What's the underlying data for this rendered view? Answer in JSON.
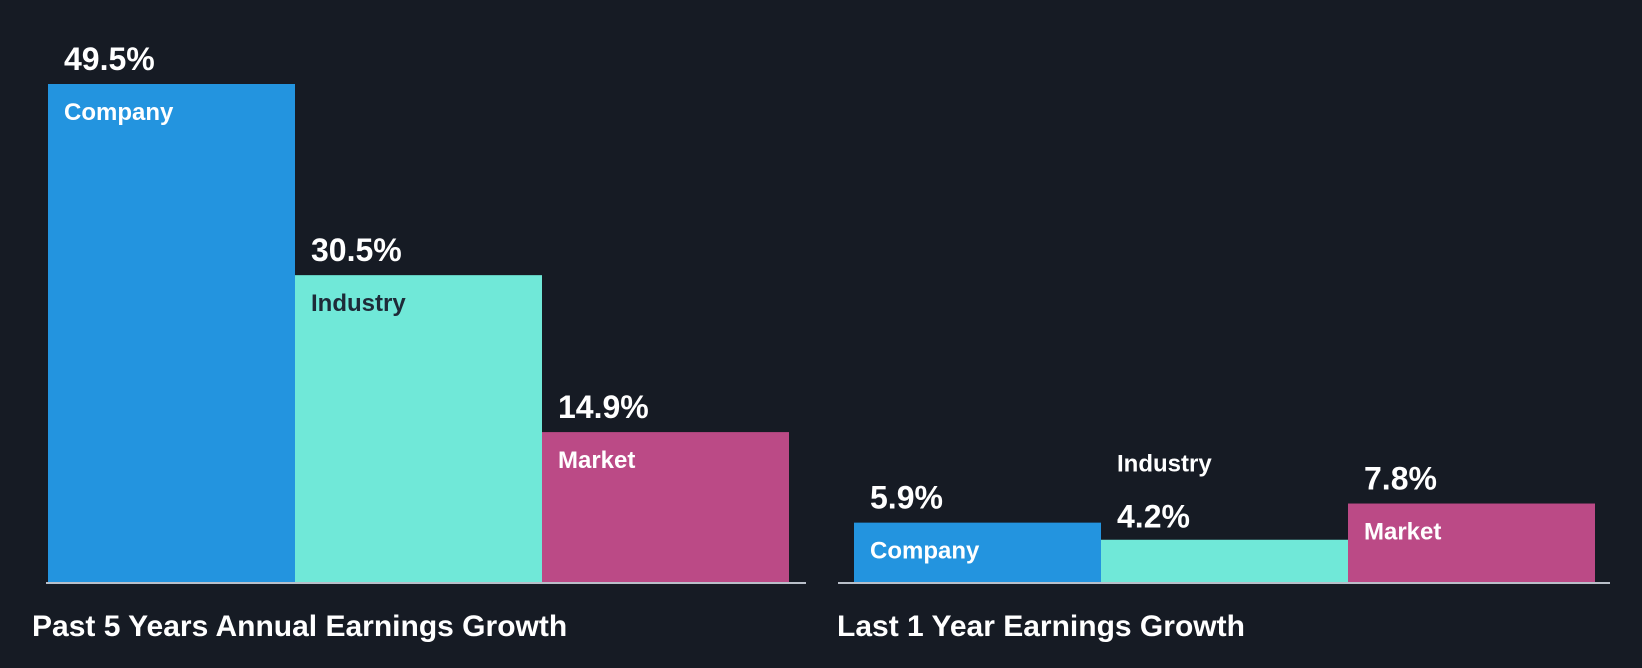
{
  "colors": {
    "background": "#161b24",
    "company": "#2394df",
    "industry": "#70e8d8",
    "market": "#bb4a86",
    "baseline": "#b9bfc9",
    "text_light": "#ffffff",
    "text_dark": "#1e2a38"
  },
  "chart_data": [
    {
      "type": "bar",
      "title": "Past 5 Years Annual Earnings Growth",
      "categories": [
        "Company",
        "Industry",
        "Market"
      ],
      "values": [
        49.5,
        30.5,
        14.9
      ],
      "value_labels": [
        "49.5%",
        "30.5%",
        "14.9%"
      ],
      "xlabel": "",
      "ylabel": "",
      "ylim": [
        0,
        49.5
      ]
    },
    {
      "type": "bar",
      "title": "Last 1 Year Earnings Growth",
      "categories": [
        "Company",
        "Industry",
        "Market"
      ],
      "values": [
        5.9,
        4.2,
        7.8
      ],
      "value_labels": [
        "5.9%",
        "4.2%",
        "7.8%"
      ],
      "xlabel": "",
      "ylabel": "",
      "ylim": [
        0,
        49.5
      ]
    }
  ]
}
